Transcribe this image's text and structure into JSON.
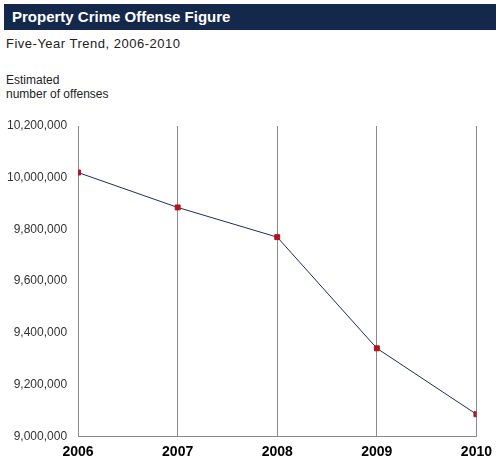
{
  "chart_data": {
    "type": "line",
    "title": "Property Crime Offense Figure",
    "subtitle": "Five-Year Trend, 2006-2010",
    "ylabel": [
      "Estimated",
      "number of offenses"
    ],
    "categories": [
      "2006",
      "2007",
      "2008",
      "2009",
      "2010"
    ],
    "series": [
      {
        "name": "Estimated number of offenses",
        "color": "#1f2d5a",
        "values": [
          10020000,
          9885000,
          9770000,
          9340000,
          9085000
        ]
      }
    ],
    "marker": "square",
    "line_style": "solid",
    "ylim": [
      9000000,
      10200000
    ],
    "yticks": [
      {
        "value": 9000000,
        "label": "9,000,000"
      },
      {
        "value": 9200000,
        "label": "9,200,000"
      },
      {
        "value": 9400000,
        "label": "9,400,000"
      },
      {
        "value": 9600000,
        "label": "9,600,000"
      },
      {
        "value": 9800000,
        "label": "9,800,000"
      },
      {
        "value": 10000000,
        "label": "10,000,000"
      },
      {
        "value": 10200000,
        "label": "10,200,000"
      }
    ],
    "grid": "x",
    "legend": false
  }
}
